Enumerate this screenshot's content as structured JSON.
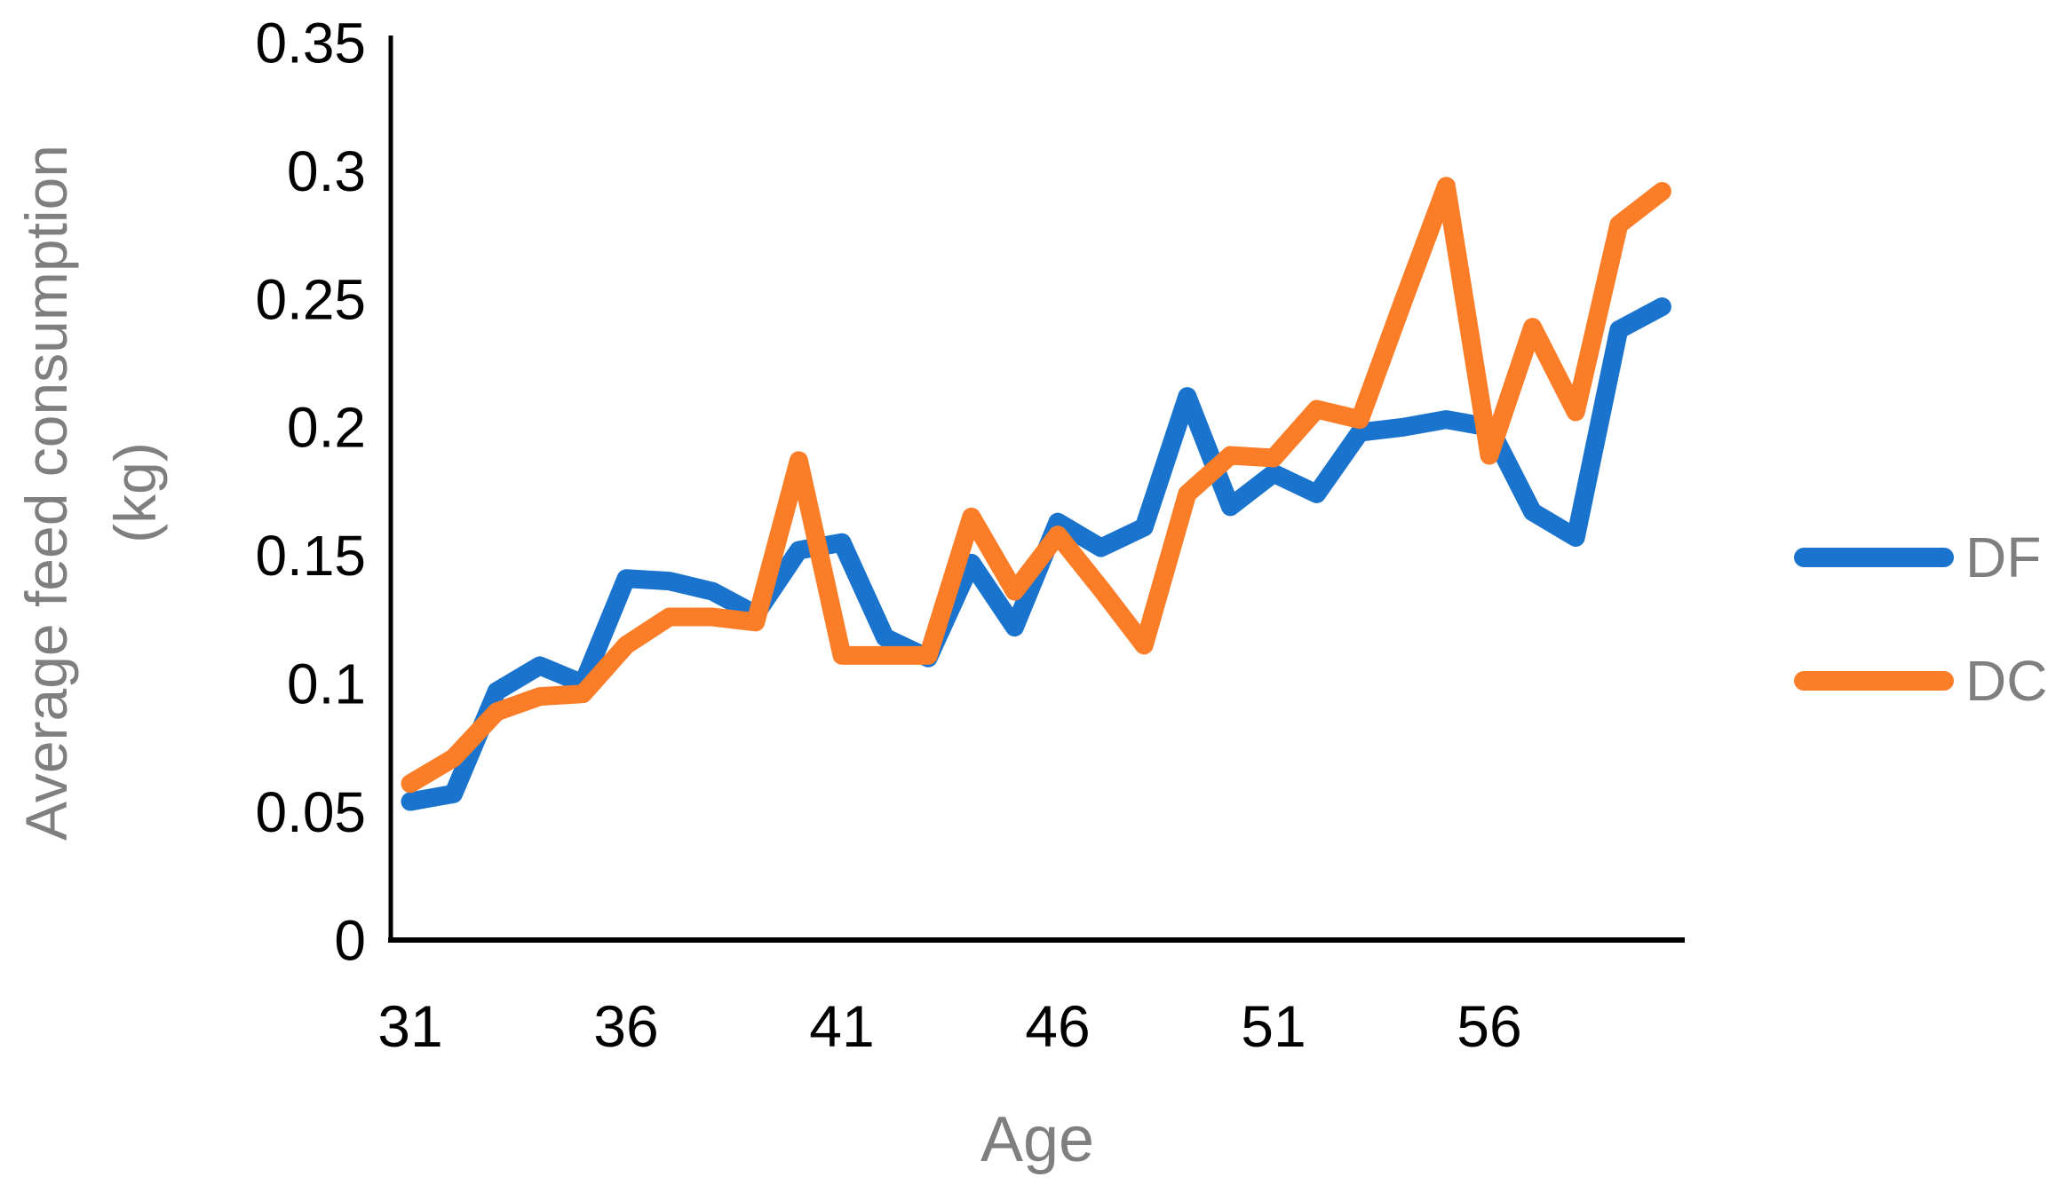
{
  "chart_data": {
    "type": "line",
    "title": "",
    "xlabel": "Age",
    "ylabel": "Average feed consumption (kg)",
    "ylabel_lines": [
      "Average feed consumption",
      "(kg)"
    ],
    "x": [
      31,
      32,
      33,
      34,
      35,
      36,
      37,
      38,
      39,
      40,
      41,
      42,
      43,
      44,
      45,
      46,
      47,
      48,
      49,
      50,
      51,
      52,
      53,
      54,
      55,
      56,
      57,
      58,
      59,
      60
    ],
    "x_tick_values": [
      31,
      36,
      41,
      46,
      51,
      56
    ],
    "x_tick_labels": [
      "31",
      "36",
      "41",
      "46",
      "51",
      "56"
    ],
    "y_tick_values": [
      0,
      0.05,
      0.1,
      0.15,
      0.2,
      0.25,
      0.3,
      0.35
    ],
    "y_tick_labels": [
      "0",
      "0.05",
      "0.1",
      "0.15",
      "0.2",
      "0.25",
      "0.3",
      "0.35"
    ],
    "ylim": [
      0,
      0.35
    ],
    "grid": false,
    "legend_position": "right",
    "series": [
      {
        "name": "DF",
        "color": "#1a74ce",
        "values": [
          0.054,
          0.057,
          0.097,
          0.107,
          0.1,
          0.141,
          0.14,
          0.136,
          0.127,
          0.152,
          0.155,
          0.118,
          0.11,
          0.147,
          0.122,
          0.163,
          0.153,
          0.161,
          0.212,
          0.169,
          0.182,
          0.174,
          0.198,
          0.2,
          0.203,
          0.2,
          0.167,
          0.157,
          0.238,
          0.247
        ]
      },
      {
        "name": "DC",
        "color": "#fb7d28",
        "values": [
          0.061,
          0.071,
          0.089,
          0.095,
          0.096,
          0.115,
          0.126,
          0.126,
          0.124,
          0.187,
          0.111,
          0.111,
          0.111,
          0.165,
          0.136,
          0.158,
          0.137,
          0.115,
          0.174,
          0.189,
          0.188,
          0.207,
          0.203,
          0.249,
          0.294,
          0.189,
          0.239,
          0.206,
          0.279,
          0.292
        ]
      }
    ],
    "axis_color": "#000000",
    "tick_label_color": "#000000",
    "title_text_color": "#7f7f7f"
  }
}
